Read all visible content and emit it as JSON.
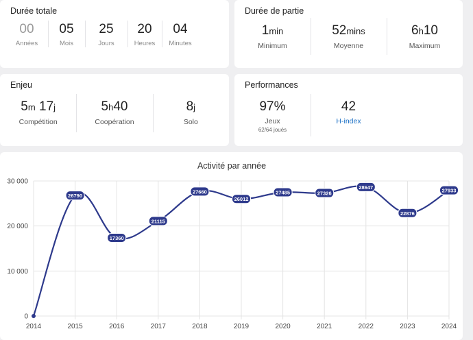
{
  "duree_totale": {
    "title": "Durée totale",
    "items": [
      {
        "value": "00",
        "label": "Années"
      },
      {
        "value": "05",
        "label": "Mois"
      },
      {
        "value": "25",
        "label": "Jours"
      },
      {
        "value": "20",
        "label": "Heures"
      },
      {
        "value": "04",
        "label": "Minutes"
      }
    ]
  },
  "duree_partie": {
    "title": "Durée de partie",
    "items": [
      {
        "value": "1",
        "unit": "min",
        "label": "Minimum"
      },
      {
        "value": "52",
        "unit": "mins",
        "label": "Moyenne"
      },
      {
        "value_a": "6",
        "unit": "h",
        "value_b": "10",
        "label": "Maximum"
      }
    ]
  },
  "enjeu": {
    "title": "Enjeu",
    "items": [
      {
        "value_a": "5",
        "unit_a": "m",
        "value_b": "17",
        "unit_b": "j",
        "label": "Compétition"
      },
      {
        "value_a": "5",
        "unit_a": "h",
        "value_b": "40",
        "label": "Coopération"
      },
      {
        "value_a": "8",
        "unit_a": "j",
        "label": "Solo"
      }
    ]
  },
  "performances": {
    "title": "Performances",
    "items": [
      {
        "value": "97%",
        "label": "Jeux",
        "sub": "62/64 joués"
      },
      {
        "value": "42",
        "label": "H-index"
      }
    ]
  },
  "colors": {
    "accent": "#2e3a8c",
    "link": "#1a6fc4"
  },
  "chart_data": {
    "type": "line",
    "title": "Activité par année",
    "categories": [
      "2014",
      "2015",
      "2016",
      "2017",
      "2018",
      "2019",
      "2020",
      "2021",
      "2022",
      "2023",
      "2024"
    ],
    "values": [
      0,
      26790,
      17360,
      21115,
      27660,
      26012,
      27485,
      27326,
      28647,
      22876,
      27933
    ],
    "data_labels": [
      "",
      "26790",
      "17360",
      "21115",
      "27660",
      "26012",
      "27485",
      "27326",
      "28647",
      "22876",
      "27933"
    ],
    "yticks": [
      0,
      10000,
      20000,
      30000
    ],
    "ytick_labels": [
      "0",
      "10 000",
      "20 000",
      "30 000"
    ],
    "ylim": [
      0,
      30000
    ],
    "grid": true
  }
}
